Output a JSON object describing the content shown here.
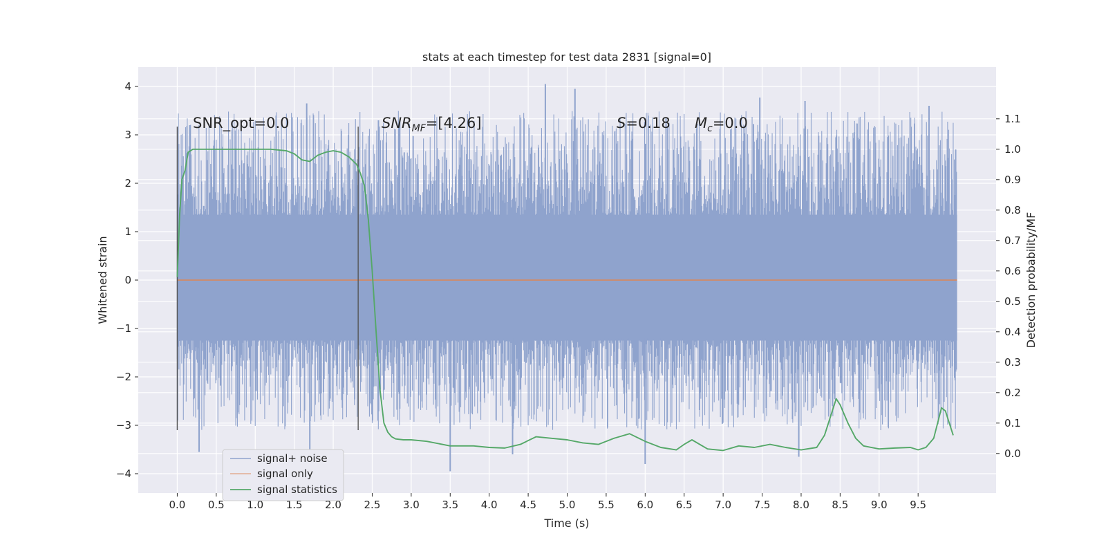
{
  "chart_data": {
    "type": "line",
    "title": "stats at each timestep for test data 2831 [signal=0]",
    "xlabel": "Time (s)",
    "ylabel": "Whitened strain",
    "ylabel_right": "Detection probability/MF",
    "xlim": [
      -0.5,
      10.5
    ],
    "ylim": [
      -4.4,
      4.4
    ],
    "ylim_right": [
      -0.13,
      1.27
    ],
    "x_ticks": [
      "0.0",
      "0.5",
      "1.0",
      "1.5",
      "2.0",
      "2.5",
      "3.0",
      "3.5",
      "4.0",
      "4.5",
      "5.0",
      "5.5",
      "6.0",
      "6.5",
      "7.0",
      "7.5",
      "8.0",
      "8.5",
      "9.0",
      "9.5"
    ],
    "x_tick_values": [
      0,
      0.5,
      1,
      1.5,
      2,
      2.5,
      3,
      3.5,
      4,
      4.5,
      5,
      5.5,
      6,
      6.5,
      7,
      7.5,
      8,
      8.5,
      9,
      9.5
    ],
    "y_ticks": [
      "−4",
      "−3",
      "−2",
      "−1",
      "0",
      "1",
      "2",
      "3",
      "4"
    ],
    "y_tick_values": [
      -4,
      -3,
      -2,
      -1,
      0,
      1,
      2,
      3,
      4
    ],
    "y_right_ticks": [
      "0.0",
      "0.1",
      "0.2",
      "0.3",
      "0.4",
      "0.5",
      "0.6",
      "0.7",
      "0.8",
      "0.9",
      "1.0",
      "1.1"
    ],
    "y_right_tick_values": [
      0,
      0.1,
      0.2,
      0.3,
      0.4,
      0.5,
      0.6,
      0.7,
      0.8,
      0.9,
      1.0,
      1.1
    ],
    "grid": true,
    "legend_position": "lower-left",
    "annotations": {
      "snr_opt": "SNR_opt=0.0",
      "snr_mf": "SNRMF=[4.26]",
      "s_value": "S=0.18",
      "mc_value": "Mc=0.0"
    },
    "vertical_lines": [
      0.0,
      2.32
    ],
    "series": [
      {
        "name": "signal+ noise",
        "axis": "left",
        "color": "#8fa3cd",
        "x_range": [
          0,
          10.0
        ],
        "y_range": [
          -3.95,
          4.05
        ],
        "core_band": [
          -1.25,
          1.35
        ],
        "notable_peaks": [
          {
            "x": 0.16,
            "y": 3.2
          },
          {
            "x": 1.66,
            "y": 3.65
          },
          {
            "x": 2.58,
            "y": 3.3
          },
          {
            "x": 4.72,
            "y": 4.05
          },
          {
            "x": 5.1,
            "y": 3.95
          },
          {
            "x": 7.47,
            "y": 3.77
          },
          {
            "x": 8.05,
            "y": 3.7
          },
          {
            "x": 9.64,
            "y": 3.6
          },
          {
            "x": 3.5,
            "y": -3.95
          },
          {
            "x": 6.0,
            "y": -3.8
          },
          {
            "x": 0.28,
            "y": -3.55
          },
          {
            "x": 7.97,
            "y": -3.65
          },
          {
            "x": 1.7,
            "y": -3.5
          },
          {
            "x": 4.3,
            "y": -3.6
          }
        ]
      },
      {
        "name": "signal only",
        "axis": "left",
        "color": "#dd8452",
        "x": [
          0,
          10.0
        ],
        "y": [
          0,
          0
        ]
      },
      {
        "name": "signal statistics",
        "axis": "right",
        "color": "#55a868",
        "x": [
          0.0,
          0.03,
          0.06,
          0.1,
          0.14,
          0.2,
          0.3,
          0.5,
          0.8,
          1.0,
          1.2,
          1.4,
          1.5,
          1.6,
          1.7,
          1.8,
          1.9,
          2.0,
          2.1,
          2.2,
          2.3,
          2.35,
          2.4,
          2.45,
          2.5,
          2.55,
          2.6,
          2.65,
          2.7,
          2.75,
          2.8,
          2.9,
          3.0,
          3.2,
          3.5,
          3.8,
          4.0,
          4.2,
          4.4,
          4.6,
          4.8,
          5.0,
          5.2,
          5.4,
          5.6,
          5.8,
          6.0,
          6.2,
          6.4,
          6.5,
          6.6,
          6.8,
          7.0,
          7.2,
          7.4,
          7.6,
          7.8,
          8.0,
          8.2,
          8.3,
          8.4,
          8.45,
          8.5,
          8.6,
          8.7,
          8.8,
          9.0,
          9.2,
          9.4,
          9.5,
          9.6,
          9.7,
          9.75,
          9.8,
          9.85,
          9.9,
          9.95
        ],
        "y": [
          0.58,
          0.78,
          0.9,
          0.93,
          0.99,
          1.0,
          1.0,
          1.0,
          1.0,
          1.0,
          1.0,
          0.995,
          0.985,
          0.965,
          0.96,
          0.98,
          0.99,
          0.995,
          0.99,
          0.975,
          0.95,
          0.92,
          0.88,
          0.77,
          0.6,
          0.4,
          0.21,
          0.1,
          0.07,
          0.055,
          0.048,
          0.045,
          0.045,
          0.04,
          0.025,
          0.025,
          0.02,
          0.018,
          0.03,
          0.055,
          0.05,
          0.045,
          0.035,
          0.03,
          0.05,
          0.065,
          0.04,
          0.02,
          0.012,
          0.03,
          0.045,
          0.015,
          0.01,
          0.025,
          0.02,
          0.03,
          0.02,
          0.012,
          0.02,
          0.06,
          0.14,
          0.18,
          0.16,
          0.1,
          0.05,
          0.025,
          0.015,
          0.018,
          0.02,
          0.012,
          0.02,
          0.05,
          0.1,
          0.15,
          0.14,
          0.1,
          0.06
        ]
      }
    ]
  }
}
